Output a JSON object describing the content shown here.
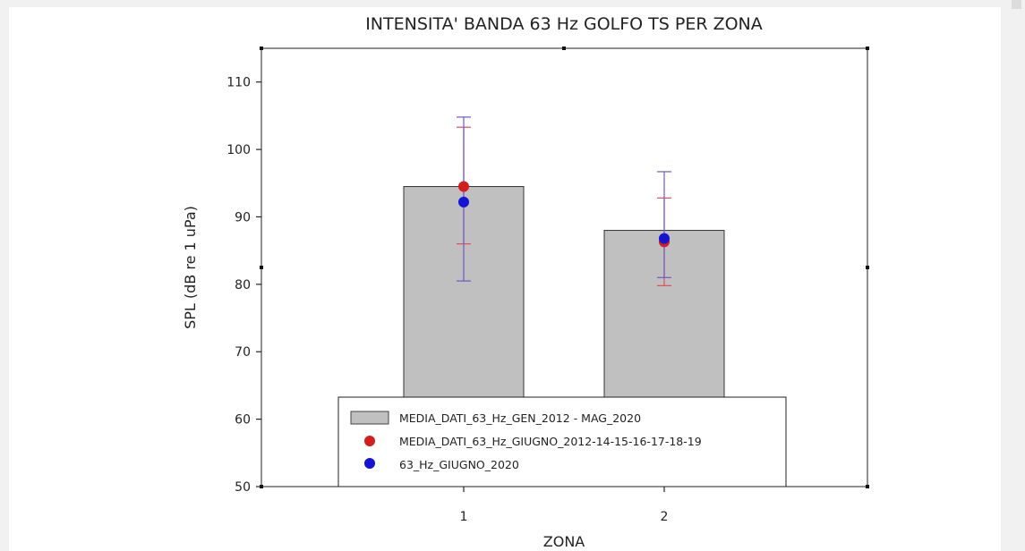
{
  "chart_data": {
    "type": "bar",
    "title": "INTENSITA' BANDA 63 Hz GOLFO TS PER ZONA",
    "xlabel": "ZONA",
    "ylabel": "SPL (dB re 1 uPa)",
    "categories": [
      "1",
      "2"
    ],
    "ylim": [
      50,
      115
    ],
    "yticks": [
      50,
      60,
      70,
      80,
      90,
      100,
      110
    ],
    "bar_series": {
      "name": "MEDIA_DATI_63_Hz_GEN_2012 - MAG_2020",
      "values": [
        94.5,
        88.0
      ],
      "color": "#c0c0c0"
    },
    "point_series": [
      {
        "name": "MEDIA_DATI_63_Hz_GIUGNO_2012-14-15-16-17-18-19",
        "color": "#d21e1e",
        "error_color": "#e0505a",
        "values": [
          94.5,
          86.3
        ],
        "err_low": [
          86.0,
          79.8
        ],
        "err_high": [
          103.3,
          92.8
        ]
      },
      {
        "name": "63_Hz_GIUGNO_2020",
        "color": "#1414d2",
        "error_color": "#6a5acd",
        "values": [
          92.2,
          86.8
        ],
        "err_low": [
          80.5,
          81.0
        ],
        "err_high": [
          104.8,
          96.7
        ]
      }
    ],
    "legend_position": "bottom-center",
    "grid": false
  }
}
